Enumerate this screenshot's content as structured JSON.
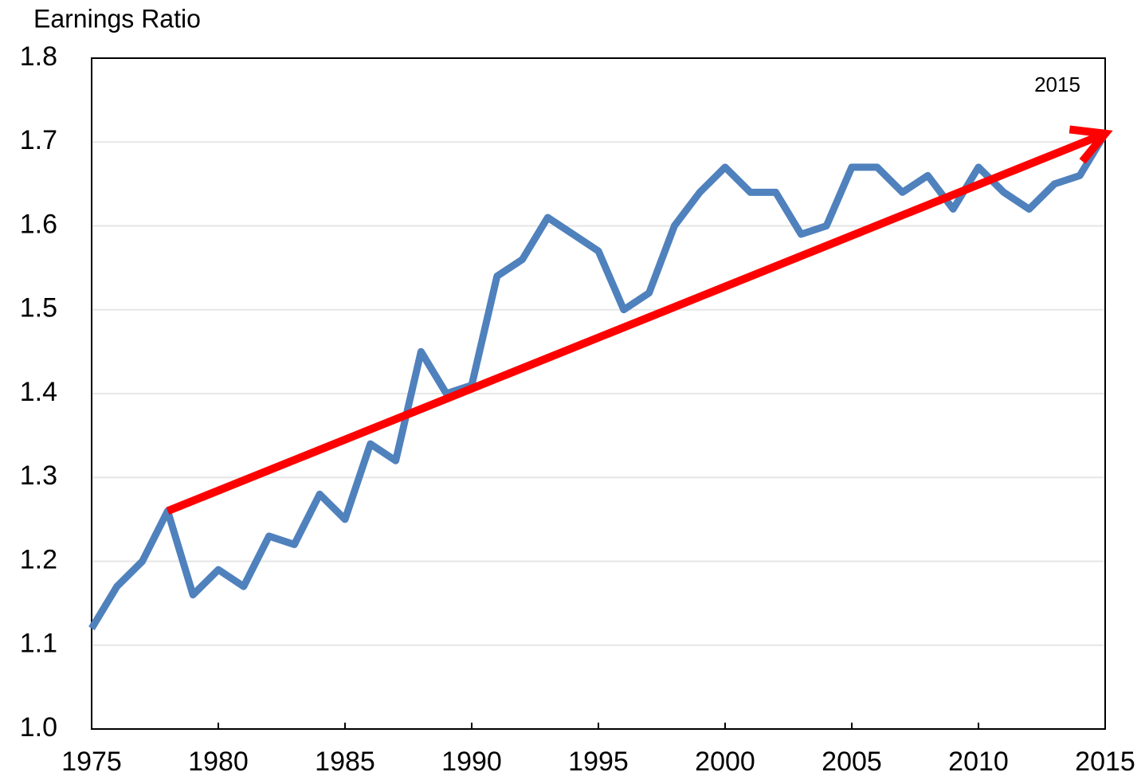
{
  "chart_data": {
    "type": "line",
    "y_axis_label": "Earnings Ratio",
    "annotation": "2015",
    "x": [
      1975,
      1976,
      1977,
      1978,
      1979,
      1980,
      1981,
      1982,
      1983,
      1984,
      1985,
      1986,
      1987,
      1988,
      1989,
      1990,
      1991,
      1992,
      1993,
      1994,
      1995,
      1996,
      1997,
      1998,
      1999,
      2000,
      2001,
      2002,
      2003,
      2004,
      2005,
      2006,
      2007,
      2008,
      2009,
      2010,
      2011,
      2012,
      2013,
      2014,
      2015
    ],
    "values": [
      1.12,
      1.17,
      1.2,
      1.26,
      1.16,
      1.19,
      1.17,
      1.23,
      1.22,
      1.28,
      1.25,
      1.34,
      1.32,
      1.45,
      1.4,
      1.41,
      1.54,
      1.56,
      1.61,
      1.59,
      1.57,
      1.5,
      1.52,
      1.6,
      1.64,
      1.67,
      1.64,
      1.64,
      1.59,
      1.6,
      1.67,
      1.67,
      1.64,
      1.66,
      1.62,
      1.67,
      1.64,
      1.62,
      1.65,
      1.66,
      1.71
    ],
    "color": "#4f81bd",
    "trend_arrow": {
      "x": [
        1978,
        2015
      ],
      "values": [
        1.26,
        1.71
      ],
      "color": "#ff0000"
    },
    "xlim": [
      1975,
      2015
    ],
    "xticks": [
      1975,
      1980,
      1985,
      1990,
      1995,
      2000,
      2005,
      2010,
      2015
    ],
    "ylim": [
      1,
      1.8
    ],
    "yticks": [
      {
        "value": 1,
        "label": "1.0"
      },
      1.1,
      1.2,
      1.3,
      1.4,
      1.5,
      1.6,
      1.7,
      1.8
    ],
    "grid": true
  }
}
